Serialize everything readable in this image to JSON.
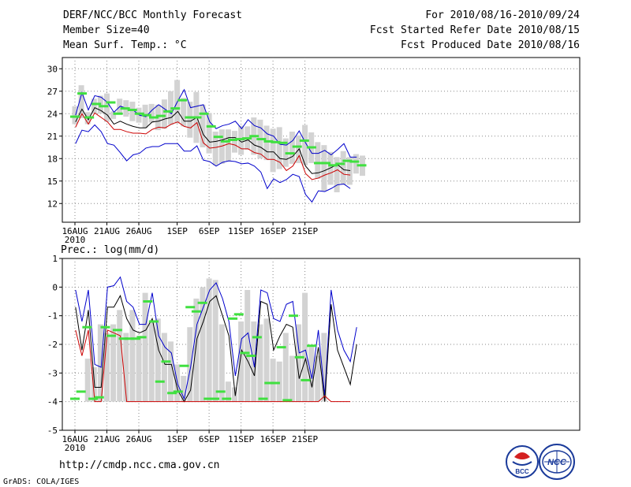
{
  "header": {
    "left": [
      "DERF/NCC/BCC Monthly Forecast",
      "Member Size=40",
      "Mean Surf. Temp.: °C"
    ],
    "right": [
      "For 2010/08/16-2010/09/24",
      "Fcst Started Refer Date 2010/08/15",
      "Fcst Produced Date 2010/08/16"
    ]
  },
  "footer": {
    "url": "http://cmdp.ncc.cma.gov.cn",
    "credit": "GrADS: COLA/IGES",
    "logo1_text": "BCC",
    "logo2_text": "NCC"
  },
  "colors": {
    "box": "#d3d3d3",
    "median": "#40e040",
    "mean": "#000000",
    "upper": "#0000cc",
    "lower": "#cc0000",
    "grid": "#888888"
  },
  "chart_data": [
    {
      "type": "box-line",
      "title": "Mean Surf. Temp.: °C",
      "ylim": [
        9.5,
        31.5
      ],
      "yticks": [
        12,
        15,
        18,
        21,
        24,
        27,
        30
      ],
      "xticks": [
        {
          "day": 0,
          "label": "16AUG",
          "sub": "2010"
        },
        {
          "day": 5,
          "label": "21AUG"
        },
        {
          "day": 10,
          "label": "26AUG"
        },
        {
          "day": 16,
          "label": "1SEP"
        },
        {
          "day": 21,
          "label": "6SEP"
        },
        {
          "day": 26,
          "label": "11SEP"
        },
        {
          "day": 31,
          "label": "16SEP"
        },
        {
          "day": 36,
          "label": "21SEP"
        }
      ],
      "series": [
        {
          "name": "upper",
          "values": [
            23.8,
            26.8,
            24.5,
            26.4,
            26.2,
            25.5,
            24.2,
            25,
            24.7,
            24.5,
            23.8,
            23.6,
            24.5,
            25.2,
            24.6,
            24,
            25.7,
            27.2,
            24.8,
            25,
            25.2,
            22.9,
            22,
            22.4,
            22.6,
            23,
            22,
            23.2,
            22.4,
            22.1,
            21.3,
            21,
            19.9,
            19.8,
            20.4,
            21.7,
            20.1,
            18.7,
            18.7,
            19.1,
            18.5,
            19.2,
            20,
            18.2,
            18.2
          ]
        },
        {
          "name": "mean",
          "values": [
            22.9,
            24.6,
            23.2,
            24.8,
            24.4,
            23.8,
            22.6,
            23,
            22.6,
            22.3,
            22.1,
            22.1,
            22.9,
            23,
            23.3,
            23.5,
            24.3,
            23,
            23,
            23.5,
            21.2,
            20.2,
            20.3,
            20.5,
            20.8,
            20.8,
            20.2,
            20.5,
            19.8,
            19.5,
            18.9,
            18.9,
            18,
            17.9,
            18.3,
            19.3,
            17,
            16,
            16.1,
            16.4,
            16.8,
            17.2,
            16.5,
            16.4
          ]
        },
        {
          "name": "lower",
          "values": [
            22.2,
            24,
            22.6,
            24.1,
            23.5,
            22.9,
            21.9,
            21.9,
            21.6,
            21.4,
            21.4,
            21.3,
            21.9,
            22.2,
            22.1,
            22.6,
            22.9,
            22.3,
            22.1,
            22.8,
            20.1,
            19.4,
            19.5,
            19.7,
            20,
            19.8,
            19.3,
            19.3,
            18.8,
            18.6,
            17.9,
            17.9,
            17.5,
            16.4,
            17,
            18.4,
            16,
            15.2,
            15.4,
            15.8,
            16.1,
            16.5,
            15.9,
            15.8
          ]
        },
        {
          "name": "lower_bound",
          "values": [
            20,
            21.8,
            21.6,
            22.5,
            21.6,
            20,
            19.8,
            18.8,
            17.7,
            18.5,
            18.7,
            19.4,
            19.6,
            19.6,
            20,
            20,
            20,
            19,
            19,
            19.7,
            17.8,
            17.6,
            17,
            17.5,
            17.7,
            17.6,
            17.3,
            17.4,
            17,
            16.2,
            14,
            15.3,
            14.8,
            15.2,
            15.9,
            15.6,
            13.2,
            12.2,
            13.7,
            13.6,
            14,
            14.5,
            14.6,
            14
          ]
        }
      ],
      "boxes": [
        [
          22.6,
          25
        ],
        [
          23.4,
          27.8
        ],
        [
          22.6,
          24.2
        ],
        [
          24,
          26
        ],
        [
          24,
          26.4
        ],
        [
          22.9,
          26.7
        ],
        [
          23.3,
          24.3
        ],
        [
          24,
          26
        ],
        [
          23.6,
          25.8
        ],
        [
          23,
          25.6
        ],
        [
          22.8,
          24.8
        ],
        [
          22.1,
          25.2
        ],
        [
          22.8,
          25.3
        ],
        [
          21.8,
          25.2
        ],
        [
          22,
          25.9
        ],
        [
          22.5,
          27
        ],
        [
          22.7,
          28.5
        ],
        [
          22.3,
          26.1
        ],
        [
          20.8,
          25.6
        ],
        [
          20.1,
          26.9
        ],
        [
          19.5,
          25.2
        ],
        [
          18.7,
          24.1
        ],
        [
          17.1,
          21.6
        ],
        [
          17.3,
          21.9
        ],
        [
          17.6,
          21.9
        ],
        [
          18.8,
          21.7
        ],
        [
          18.5,
          22.4
        ],
        [
          19.2,
          22.3
        ],
        [
          18.5,
          23.5
        ],
        [
          18,
          23.2
        ],
        [
          17.8,
          22.4
        ],
        [
          16.2,
          22
        ],
        [
          16.6,
          22.2
        ],
        [
          16.9,
          20.7
        ],
        [
          17.3,
          21.6
        ],
        [
          17.4,
          21.1
        ],
        [
          17.1,
          22.5
        ],
        [
          17.4,
          21.5
        ],
        [
          15.3,
          20.2
        ],
        [
          13.7,
          19.8
        ],
        [
          14.5,
          18.9
        ],
        [
          13.5,
          18.2
        ],
        [
          14.5,
          19
        ],
        [
          14.5,
          18.2
        ],
        [
          16,
          18.6
        ],
        [
          15.7,
          18.4
        ]
      ],
      "medians": [
        23.6,
        26.7,
        23.5,
        25.3,
        25,
        25.5,
        24,
        24.7,
        24.5,
        24,
        23.8,
        23.5,
        23.7,
        24.3,
        24.7,
        25.8,
        23.5,
        23.5,
        24,
        22.3,
        20.9,
        20.3,
        20.5,
        20.6,
        20.7,
        21,
        20.6,
        20.3,
        20.2,
        20.1,
        18.7,
        19.6,
        20.4,
        19.5,
        17.4,
        17.4,
        17.1,
        17.3,
        17.7,
        17.6,
        17.1
      ]
    },
    {
      "type": "box-line",
      "title": "Prec.: log(mm/d)",
      "ylim": [
        -5,
        1
      ],
      "yticks": [
        -5,
        -4,
        -3,
        -2,
        -1,
        0,
        1
      ],
      "xticks": [
        {
          "day": 0,
          "label": "16AUG",
          "sub": "2010"
        },
        {
          "day": 5,
          "label": "21AUG"
        },
        {
          "day": 10,
          "label": "26AUG"
        },
        {
          "day": 16,
          "label": "1SEP"
        },
        {
          "day": 21,
          "label": "6SEP"
        },
        {
          "day": 26,
          "label": "11SEP"
        },
        {
          "day": 31,
          "label": "16SEP"
        },
        {
          "day": 36,
          "label": "21SEP"
        }
      ],
      "series": [
        {
          "name": "upper",
          "values": [
            -0.1,
            -1.2,
            -0.1,
            -2.7,
            -2.8,
            0,
            0.05,
            0.35,
            -0.5,
            -0.7,
            -1.3,
            -1.3,
            -0.2,
            -1.7,
            -2.1,
            -2.3,
            -3.4,
            -3.9,
            -2.8,
            -1.3,
            -0.7,
            -0.1,
            0.15,
            -0.4,
            -1.2,
            -3.1,
            -1.8,
            -1.6,
            -2.8,
            -0.1,
            -0.2,
            -1.1,
            -1.2,
            -0.6,
            -0.5,
            -2.3,
            -2.2,
            -3.2,
            -1.5,
            -3.8,
            -0.1,
            -1.5,
            -2.2,
            -2.6,
            -1.4
          ]
        },
        {
          "name": "mean",
          "values": [
            -0.7,
            -2.2,
            -0.8,
            -3.5,
            -3.5,
            -0.7,
            -0.7,
            -0.3,
            -1.1,
            -1.5,
            -1.6,
            -1.5,
            -1.1,
            -2.2,
            -2.7,
            -2.7,
            -3.6,
            -4,
            -3.6,
            -1.8,
            -1.2,
            -0.5,
            -0.3,
            -1,
            -1.7,
            -3.8,
            -2.2,
            -2.6,
            -3.1,
            -0.5,
            -0.6,
            -2.2,
            -1.7,
            -1.3,
            -1.4,
            -3.2,
            -2.5,
            -3.5,
            -2.1,
            -4,
            -0.6,
            -2.2,
            -2.8,
            -3.4,
            -2
          ]
        },
        {
          "name": "lower",
          "values": [
            -1.5,
            -2.4,
            -1.5,
            -4,
            -4,
            -1.5,
            -1.6,
            -1.7,
            -4,
            -4,
            -4,
            -4,
            -4,
            -4,
            -4,
            -4,
            -4,
            -4,
            -4,
            -4,
            -4,
            -4,
            -4,
            -4,
            -4,
            -4,
            -4,
            -4,
            -4,
            -4,
            -4,
            -4,
            -4,
            -4,
            -4,
            -4,
            -4,
            -4,
            -4,
            -3.8,
            -4,
            -4,
            -4,
            -4
          ]
        }
      ],
      "boxes": [
        [
          -4,
          -2.5
        ],
        [
          -4,
          -2.8
        ],
        [
          -4,
          -1.3
        ],
        [
          -4,
          -1.6
        ],
        [
          -4,
          -1.3
        ],
        [
          -4,
          -0.8
        ],
        [
          -4,
          -1.6
        ],
        [
          -4,
          -0.8
        ],
        [
          -4,
          -1.7
        ],
        [
          -4,
          -0.2
        ],
        [
          -4,
          -1.2
        ],
        [
          -4,
          -1.1
        ],
        [
          -4,
          -1.6
        ],
        [
          -4,
          -1.9
        ],
        [
          -4,
          -2.7
        ],
        [
          -4,
          -3.1
        ],
        [
          -4,
          -1.4
        ],
        [
          -4,
          -0.4
        ],
        [
          -4,
          0
        ],
        [
          -4,
          0.3
        ],
        [
          -4,
          0.25
        ],
        [
          -4,
          -1.3
        ],
        [
          -4,
          -3.3
        ],
        [
          -4,
          -3.5
        ],
        [
          -4,
          -1.2
        ],
        [
          -4,
          -0.1
        ],
        [
          -4,
          -1.2
        ],
        [
          -4,
          -1.3
        ],
        [
          -4,
          -1.1
        ],
        [
          -4,
          -2.5
        ],
        [
          -4,
          -2.6
        ],
        [
          -4,
          -1.6
        ],
        [
          -4,
          -2.4
        ],
        [
          -4,
          -1.3
        ],
        [
          -4,
          -0.2
        ],
        [
          -4,
          -2.1
        ],
        [
          -4,
          -2.4
        ],
        [
          -4,
          -1.6
        ]
      ],
      "medians": [
        -3.9,
        -3.65,
        -1.4,
        -3.9,
        -3.85,
        -1.4,
        -1.7,
        -1.5,
        -1.8,
        -1.8,
        -1.8,
        -1.75,
        -0.5,
        -1.2,
        -3.3,
        -2.6,
        -3.7,
        -3.65,
        -2.75,
        -0.7,
        -0.85,
        -0.55,
        -3.9,
        -3.9,
        -3.65,
        -3.9,
        -1.1,
        -0.95,
        -2.3,
        -2.4,
        -1.75,
        -3.9,
        -3.35,
        -3.35,
        -2.1,
        -3.95,
        -1,
        -2.45,
        -3.25,
        -2.05
      ]
    }
  ]
}
